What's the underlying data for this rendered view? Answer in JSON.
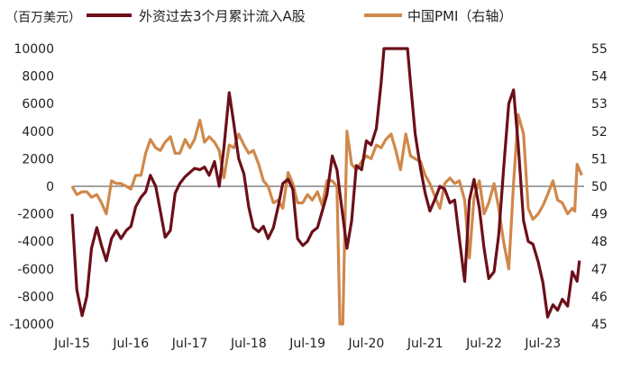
{
  "chart_data": {
    "type": "line",
    "unit_label": "（百万美元）",
    "x_ticks": [
      "Jul-15",
      "Jul-16",
      "Jul-17",
      "Jul-18",
      "Jul-19",
      "Jul-20",
      "Jul-21",
      "Jul-22",
      "Jul-23"
    ],
    "y_left": {
      "min": -10000,
      "max": 10000,
      "ticks": [
        "10000",
        "8000",
        "6000",
        "4000",
        "2000",
        "0",
        "-2000",
        "-4000",
        "-6000",
        "-8000",
        "-10000"
      ]
    },
    "y_right": {
      "min": 45,
      "max": 55,
      "ticks": [
        "55",
        "54",
        "53",
        "52",
        "51",
        "50",
        "49",
        "48",
        "47",
        "46",
        "45"
      ]
    },
    "x_range": [
      2015.5,
      2024.2
    ],
    "series": [
      {
        "name": "外资过去3个月累计流入A股",
        "axis": "left",
        "color": "#6b0f1a",
        "points": [
          [
            2015.5,
            -2000
          ],
          [
            2015.58,
            -7500
          ],
          [
            2015.67,
            -9400
          ],
          [
            2015.75,
            -8000
          ],
          [
            2015.83,
            -4500
          ],
          [
            2015.92,
            -3000
          ],
          [
            2016.0,
            -4300
          ],
          [
            2016.08,
            -5400
          ],
          [
            2016.17,
            -3800
          ],
          [
            2016.25,
            -3200
          ],
          [
            2016.33,
            -3800
          ],
          [
            2016.42,
            -3200
          ],
          [
            2016.5,
            -2900
          ],
          [
            2016.58,
            -1500
          ],
          [
            2016.67,
            -800
          ],
          [
            2016.75,
            -400
          ],
          [
            2016.83,
            800
          ],
          [
            2016.92,
            0
          ],
          [
            2017.0,
            -1800
          ],
          [
            2017.08,
            -3700
          ],
          [
            2017.17,
            -3200
          ],
          [
            2017.25,
            -500
          ],
          [
            2017.33,
            200
          ],
          [
            2017.42,
            700
          ],
          [
            2017.5,
            1000
          ],
          [
            2017.58,
            1300
          ],
          [
            2017.67,
            1200
          ],
          [
            2017.75,
            1400
          ],
          [
            2017.83,
            800
          ],
          [
            2017.92,
            1800
          ],
          [
            2018.0,
            0
          ],
          [
            2018.08,
            2800
          ],
          [
            2018.17,
            6800
          ],
          [
            2018.25,
            4500
          ],
          [
            2018.33,
            2000
          ],
          [
            2018.42,
            900
          ],
          [
            2018.5,
            -1500
          ],
          [
            2018.58,
            -3000
          ],
          [
            2018.67,
            -3300
          ],
          [
            2018.75,
            -2900
          ],
          [
            2018.83,
            -3800
          ],
          [
            2018.92,
            -3000
          ],
          [
            2019.0,
            -1500
          ],
          [
            2019.08,
            200
          ],
          [
            2019.17,
            500
          ],
          [
            2019.25,
            -200
          ],
          [
            2019.33,
            -3800
          ],
          [
            2019.42,
            -4300
          ],
          [
            2019.5,
            -4000
          ],
          [
            2019.58,
            -3300
          ],
          [
            2019.67,
            -3000
          ],
          [
            2019.75,
            -1800
          ],
          [
            2019.83,
            -600
          ],
          [
            2019.92,
            2200
          ],
          [
            2020.0,
            1200
          ],
          [
            2020.08,
            -1500
          ],
          [
            2020.17,
            -4500
          ],
          [
            2020.25,
            -2500
          ],
          [
            2020.33,
            1500
          ],
          [
            2020.42,
            1200
          ],
          [
            2020.5,
            3300
          ],
          [
            2020.58,
            3000
          ],
          [
            2020.67,
            4200
          ],
          [
            2020.75,
            7500
          ],
          [
            2020.8,
            10000
          ],
          [
            2021.2,
            10000
          ],
          [
            2021.25,
            7500
          ],
          [
            2021.33,
            3800
          ],
          [
            2021.42,
            1300
          ],
          [
            2021.5,
            -500
          ],
          [
            2021.58,
            -1800
          ],
          [
            2021.67,
            -900
          ],
          [
            2021.75,
            0
          ],
          [
            2021.83,
            -200
          ],
          [
            2021.92,
            -1200
          ],
          [
            2022.0,
            -1000
          ],
          [
            2022.08,
            -3800
          ],
          [
            2022.17,
            -6900
          ],
          [
            2022.25,
            -1000
          ],
          [
            2022.33,
            500
          ],
          [
            2022.42,
            -1600
          ],
          [
            2022.5,
            -4500
          ],
          [
            2022.58,
            -6700
          ],
          [
            2022.67,
            -6200
          ],
          [
            2022.75,
            -3500
          ],
          [
            2022.83,
            1200
          ],
          [
            2022.92,
            6000
          ],
          [
            2023.0,
            7000
          ],
          [
            2023.08,
            3000
          ],
          [
            2023.17,
            -2500
          ],
          [
            2023.25,
            -4000
          ],
          [
            2023.33,
            -4200
          ],
          [
            2023.42,
            -5500
          ],
          [
            2023.5,
            -7000
          ],
          [
            2023.58,
            -9500
          ],
          [
            2023.67,
            -8600
          ],
          [
            2023.75,
            -9000
          ],
          [
            2023.83,
            -8200
          ],
          [
            2023.92,
            -8700
          ],
          [
            2024.0,
            -6200
          ],
          [
            2024.08,
            -6900
          ],
          [
            2024.12,
            -5400
          ]
        ]
      },
      {
        "name": "中国PMI（右轴）",
        "axis": "right",
        "color": "#d0884a",
        "points": [
          [
            2015.5,
            50.0
          ],
          [
            2015.58,
            49.7
          ],
          [
            2015.67,
            49.8
          ],
          [
            2015.75,
            49.8
          ],
          [
            2015.83,
            49.6
          ],
          [
            2015.92,
            49.7
          ],
          [
            2016.0,
            49.4
          ],
          [
            2016.08,
            49.0
          ],
          [
            2016.17,
            50.2
          ],
          [
            2016.25,
            50.1
          ],
          [
            2016.33,
            50.1
          ],
          [
            2016.42,
            50.0
          ],
          [
            2016.5,
            49.9
          ],
          [
            2016.58,
            50.4
          ],
          [
            2016.67,
            50.4
          ],
          [
            2016.75,
            51.2
          ],
          [
            2016.83,
            51.7
          ],
          [
            2016.92,
            51.4
          ],
          [
            2017.0,
            51.3
          ],
          [
            2017.08,
            51.6
          ],
          [
            2017.17,
            51.8
          ],
          [
            2017.25,
            51.2
          ],
          [
            2017.33,
            51.2
          ],
          [
            2017.42,
            51.7
          ],
          [
            2017.5,
            51.4
          ],
          [
            2017.58,
            51.7
          ],
          [
            2017.67,
            52.4
          ],
          [
            2017.75,
            51.6
          ],
          [
            2017.83,
            51.8
          ],
          [
            2017.92,
            51.6
          ],
          [
            2018.0,
            51.3
          ],
          [
            2018.08,
            50.3
          ],
          [
            2018.17,
            51.5
          ],
          [
            2018.25,
            51.4
          ],
          [
            2018.33,
            51.9
          ],
          [
            2018.42,
            51.5
          ],
          [
            2018.5,
            51.2
          ],
          [
            2018.58,
            51.3
          ],
          [
            2018.67,
            50.8
          ],
          [
            2018.75,
            50.2
          ],
          [
            2018.83,
            50.0
          ],
          [
            2018.92,
            49.4
          ],
          [
            2019.0,
            49.5
          ],
          [
            2019.08,
            49.2
          ],
          [
            2019.17,
            50.5
          ],
          [
            2019.25,
            50.1
          ],
          [
            2019.33,
            49.4
          ],
          [
            2019.42,
            49.4
          ],
          [
            2019.5,
            49.7
          ],
          [
            2019.58,
            49.5
          ],
          [
            2019.67,
            49.8
          ],
          [
            2019.75,
            49.3
          ],
          [
            2019.83,
            50.2
          ],
          [
            2019.92,
            50.2
          ],
          [
            2020.0,
            50.0
          ],
          [
            2020.05,
            45.0
          ],
          [
            2020.1,
            45.0
          ],
          [
            2020.17,
            52.0
          ],
          [
            2020.25,
            50.8
          ],
          [
            2020.33,
            50.6
          ],
          [
            2020.42,
            50.9
          ],
          [
            2020.5,
            51.1
          ],
          [
            2020.58,
            51.0
          ],
          [
            2020.67,
            51.5
          ],
          [
            2020.75,
            51.4
          ],
          [
            2020.83,
            51.7
          ],
          [
            2020.92,
            51.9
          ],
          [
            2021.0,
            51.3
          ],
          [
            2021.08,
            50.6
          ],
          [
            2021.17,
            51.9
          ],
          [
            2021.25,
            51.1
          ],
          [
            2021.33,
            51.0
          ],
          [
            2021.42,
            50.9
          ],
          [
            2021.5,
            50.4
          ],
          [
            2021.58,
            50.1
          ],
          [
            2021.67,
            49.6
          ],
          [
            2021.75,
            49.2
          ],
          [
            2021.83,
            50.1
          ],
          [
            2021.92,
            50.3
          ],
          [
            2022.0,
            50.1
          ],
          [
            2022.08,
            50.2
          ],
          [
            2022.17,
            49.5
          ],
          [
            2022.25,
            47.4
          ],
          [
            2022.33,
            49.6
          ],
          [
            2022.42,
            50.2
          ],
          [
            2022.5,
            49.0
          ],
          [
            2022.58,
            49.4
          ],
          [
            2022.67,
            50.1
          ],
          [
            2022.75,
            49.2
          ],
          [
            2022.83,
            48.0
          ],
          [
            2022.92,
            47.0
          ],
          [
            2023.0,
            50.1
          ],
          [
            2023.08,
            52.6
          ],
          [
            2023.17,
            51.9
          ],
          [
            2023.25,
            49.2
          ],
          [
            2023.33,
            48.8
          ],
          [
            2023.42,
            49.0
          ],
          [
            2023.5,
            49.3
          ],
          [
            2023.58,
            49.7
          ],
          [
            2023.67,
            50.2
          ],
          [
            2023.75,
            49.5
          ],
          [
            2023.83,
            49.4
          ],
          [
            2023.92,
            49.0
          ],
          [
            2024.0,
            49.2
          ],
          [
            2024.04,
            49.1
          ],
          [
            2024.08,
            50.8
          ],
          [
            2024.16,
            50.4
          ]
        ]
      }
    ]
  }
}
